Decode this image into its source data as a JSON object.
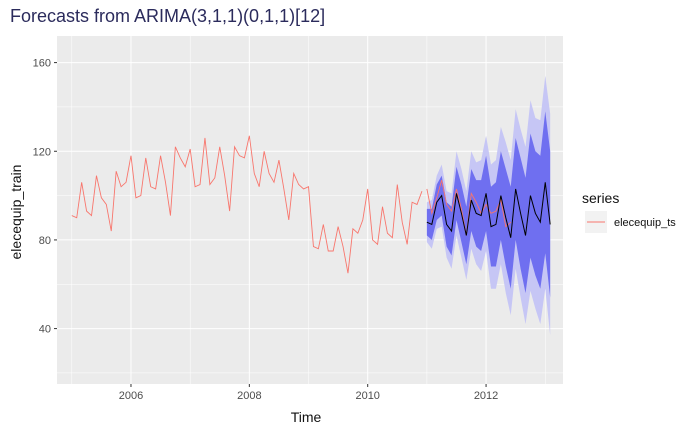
{
  "chart_data": {
    "type": "line",
    "title": "Forecasts from ARIMA(3,1,1)(0,1,1)[12]",
    "xlabel": "Time",
    "ylabel": "elecequip_train",
    "xlim": [
      2004.75,
      2013.3
    ],
    "ylim": [
      15,
      172
    ],
    "x_ticks": [
      2006,
      2008,
      2010,
      2012
    ],
    "x_tick_labels": [
      "2006",
      "2008",
      "2010",
      "2012"
    ],
    "y_ticks": [
      40,
      80,
      120,
      160
    ],
    "y_tick_labels": [
      "40",
      "80",
      "120",
      "160"
    ],
    "grid": true,
    "legend": {
      "title": "series",
      "position": "right",
      "entries": [
        "elecequip_ts"
      ]
    },
    "colors": {
      "train_line": "#f8766d",
      "forecast_line": "#000000",
      "interval_80": "#6f6ff0",
      "interval_95": "#c6c6f5",
      "panel_bg": "#ebebeb",
      "grid": "#ffffff"
    },
    "training_series": {
      "start": 2005.0,
      "frequency": 12,
      "values": [
        91,
        90,
        106,
        93,
        91,
        109,
        99,
        96,
        84,
        111,
        104,
        106,
        118,
        99,
        100,
        117,
        104,
        103,
        118,
        106,
        91,
        122,
        117,
        113,
        121,
        104,
        105,
        126,
        105,
        108,
        122,
        109,
        93,
        122,
        118,
        117,
        127,
        110,
        104,
        120,
        110,
        106,
        116,
        103,
        89,
        110,
        105,
        103,
        104,
        77,
        76,
        87,
        75,
        75,
        86,
        77,
        65,
        85,
        83,
        89,
        103,
        80,
        78,
        95,
        83,
        81,
        105,
        88,
        78,
        97,
        96,
        102
      ]
    },
    "test_series": {
      "name": "elecequip_ts",
      "start": 2011.0,
      "frequency": 12,
      "values": [
        103,
        92,
        99,
        107,
        96,
        93,
        103,
        94,
        82,
        101,
        97,
        92,
        96,
        92,
        93,
        98,
        86,
        88
      ]
    },
    "forecast": {
      "start": 2011.0,
      "frequency": 12,
      "mean": [
        88,
        87,
        97,
        100,
        87,
        84,
        101,
        92,
        82,
        98,
        92,
        91,
        101,
        86,
        87,
        100,
        90,
        81,
        103,
        92,
        82,
        100,
        92,
        88,
        106,
        87
      ],
      "lo80": [
        82,
        80,
        89,
        91,
        77,
        73,
        89,
        79,
        69,
        84,
        77,
        75,
        84,
        68,
        68,
        80,
        68,
        58,
        80,
        67,
        56,
        72,
        64,
        58,
        74,
        54
      ],
      "hi80": [
        94,
        94,
        105,
        109,
        97,
        95,
        113,
        105,
        95,
        112,
        107,
        107,
        118,
        104,
        106,
        120,
        112,
        104,
        126,
        117,
        108,
        128,
        120,
        118,
        138,
        120
      ],
      "lo95": [
        79,
        76,
        85,
        86,
        72,
        67,
        82,
        72,
        62,
        76,
        69,
        66,
        75,
        58,
        58,
        69,
        56,
        46,
        67,
        54,
        42,
        57,
        49,
        42,
        58,
        37
      ],
      "hi95": [
        97,
        98,
        109,
        114,
        102,
        101,
        120,
        112,
        102,
        120,
        115,
        116,
        127,
        114,
        116,
        131,
        124,
        116,
        139,
        130,
        122,
        143,
        135,
        134,
        154,
        137
      ]
    }
  }
}
